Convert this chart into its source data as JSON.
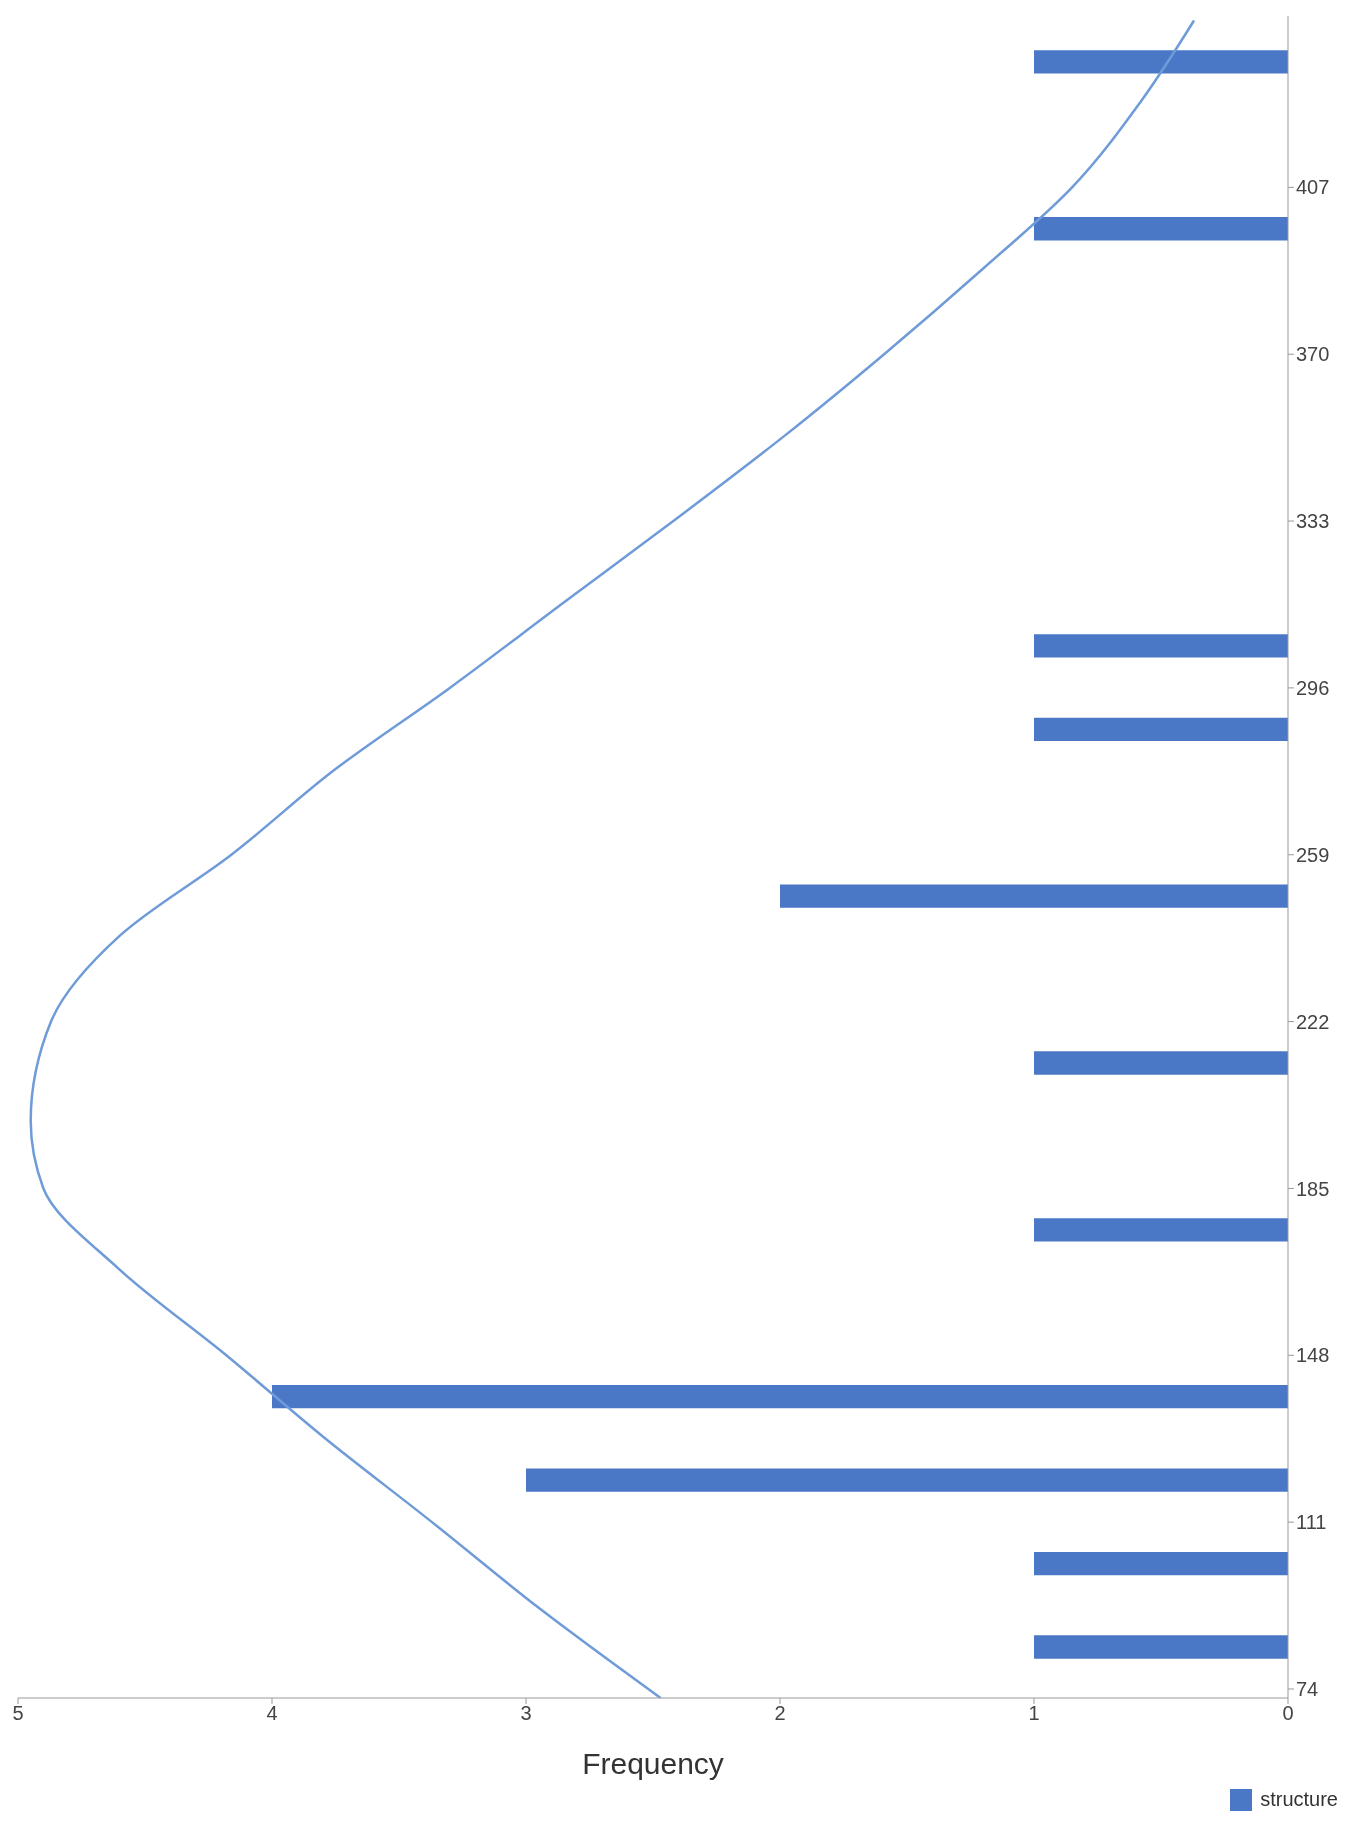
{
  "chart_data": {
    "type": "histogram",
    "orientation": "horizontal",
    "xlabel": "Frequency",
    "bins": [
      74,
      92.5,
      111,
      129.5,
      148,
      166.5,
      185,
      203.5,
      222,
      240.5,
      259,
      277.5,
      296,
      314.5,
      333,
      351.5,
      370,
      388.5,
      407,
      425.5,
      444
    ],
    "series": [
      {
        "name": "structure",
        "type": "histogram",
        "color": "#4a78c6",
        "values": [
          1,
          1,
          3,
          4,
          0,
          1,
          0,
          1,
          0,
          2,
          0,
          1,
          1,
          0,
          0,
          0,
          0,
          1,
          0,
          1
        ]
      },
      {
        "type": "line",
        "color": "#6f9bd8",
        "x": [
          72,
          92,
          111,
          130,
          148,
          167,
          185,
          200,
          222,
          241,
          259,
          278,
          296,
          315,
          333,
          352,
          370,
          389,
          407,
          426,
          444
        ],
        "values": [
          2.47,
          2.95,
          3.37,
          3.8,
          4.18,
          4.6,
          4.9,
          4.95,
          4.87,
          4.6,
          4.16,
          3.75,
          3.3,
          2.85,
          2.42,
          1.98,
          1.59,
          1.2,
          0.85,
          0.58,
          0.37
        ]
      }
    ],
    "xlim": [
      5,
      0
    ],
    "xticks": [
      0,
      1,
      2,
      3,
      4,
      5
    ],
    "ylim": [
      72,
      445
    ],
    "yticks": [
      74,
      111,
      148,
      185,
      222,
      259,
      296,
      333,
      370,
      407
    ],
    "legend": "bottom right",
    "marker": "none",
    "line_style": "solid"
  }
}
